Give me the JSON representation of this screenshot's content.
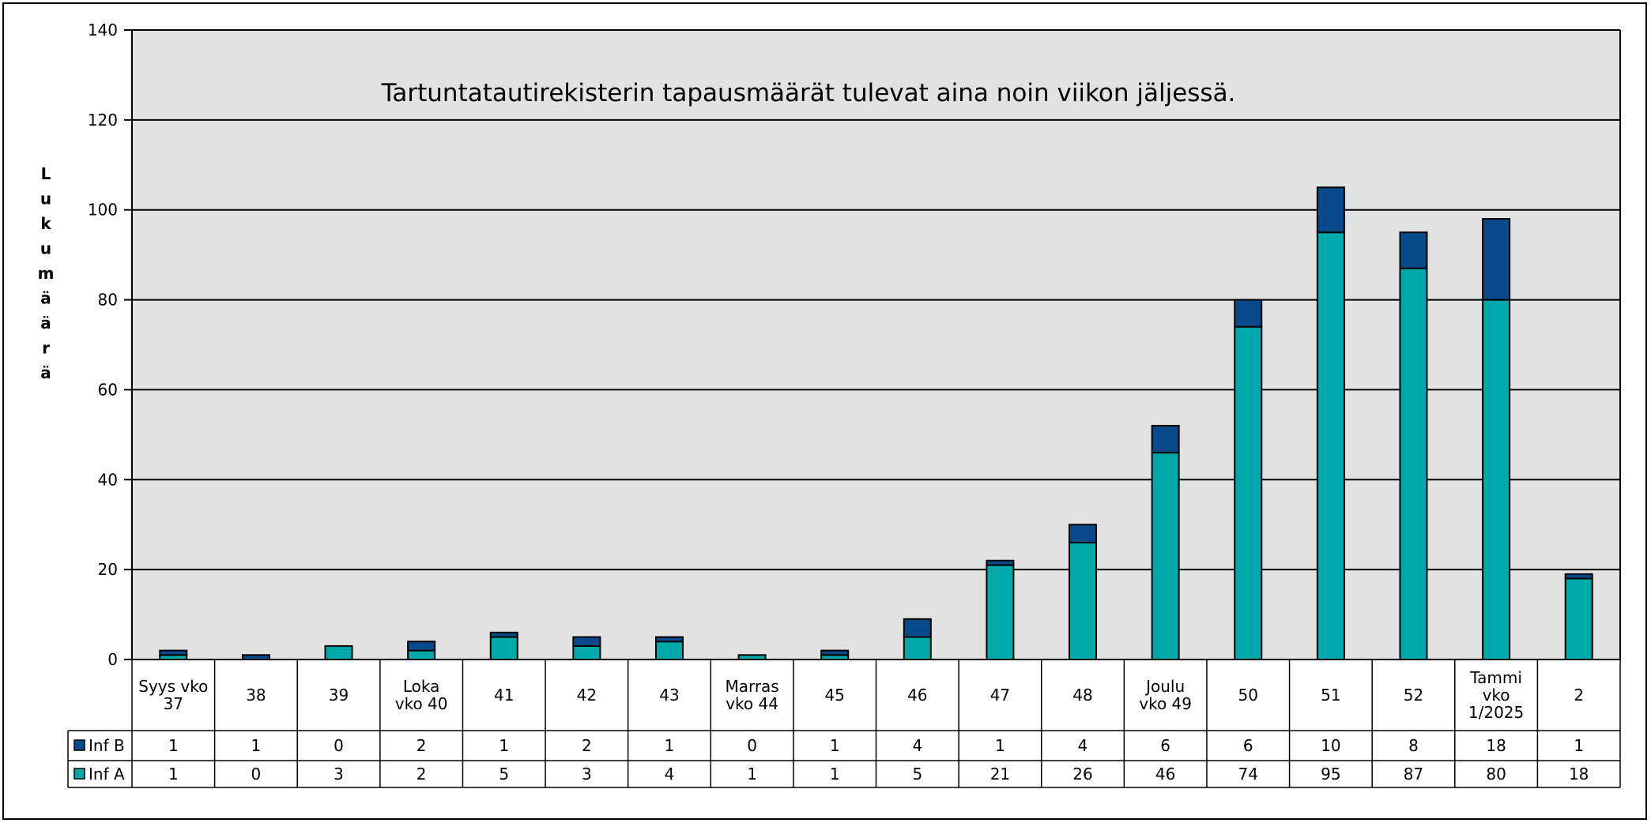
{
  "chart_data": {
    "type": "bar",
    "stacked": true,
    "annotation": "Tartuntatautirekisterin tapausmäärät tulevat aina noin viikon jäljessä.",
    "ylabel": "Lukumäärä",
    "ylim": [
      0,
      140
    ],
    "yticks": [
      0,
      20,
      40,
      60,
      80,
      100,
      120,
      140
    ],
    "grid": true,
    "legend_position": "data-table",
    "categories": [
      [
        "Syys vko",
        "37"
      ],
      [
        "38"
      ],
      [
        "39"
      ],
      [
        "Loka",
        "vko 40"
      ],
      [
        "41"
      ],
      [
        "42"
      ],
      [
        "43"
      ],
      [
        "Marras",
        "vko 44"
      ],
      [
        "45"
      ],
      [
        "46"
      ],
      [
        "47"
      ],
      [
        "48"
      ],
      [
        "Joulu",
        "vko 49"
      ],
      [
        "50"
      ],
      [
        "51"
      ],
      [
        "52"
      ],
      [
        "Tammi",
        "vko",
        "1/2025"
      ],
      [
        "2"
      ]
    ],
    "series": [
      {
        "name": "Inf B",
        "color": "#0B4A8A",
        "values": [
          1,
          1,
          0,
          2,
          1,
          2,
          1,
          0,
          1,
          4,
          1,
          4,
          6,
          6,
          10,
          8,
          18,
          1
        ]
      },
      {
        "name": "Inf A",
        "color": "#00A9A9",
        "values": [
          1,
          0,
          3,
          2,
          5,
          3,
          4,
          1,
          1,
          5,
          21,
          26,
          46,
          74,
          95,
          87,
          80,
          18
        ]
      }
    ],
    "plot_background": "#E2E2E2"
  }
}
